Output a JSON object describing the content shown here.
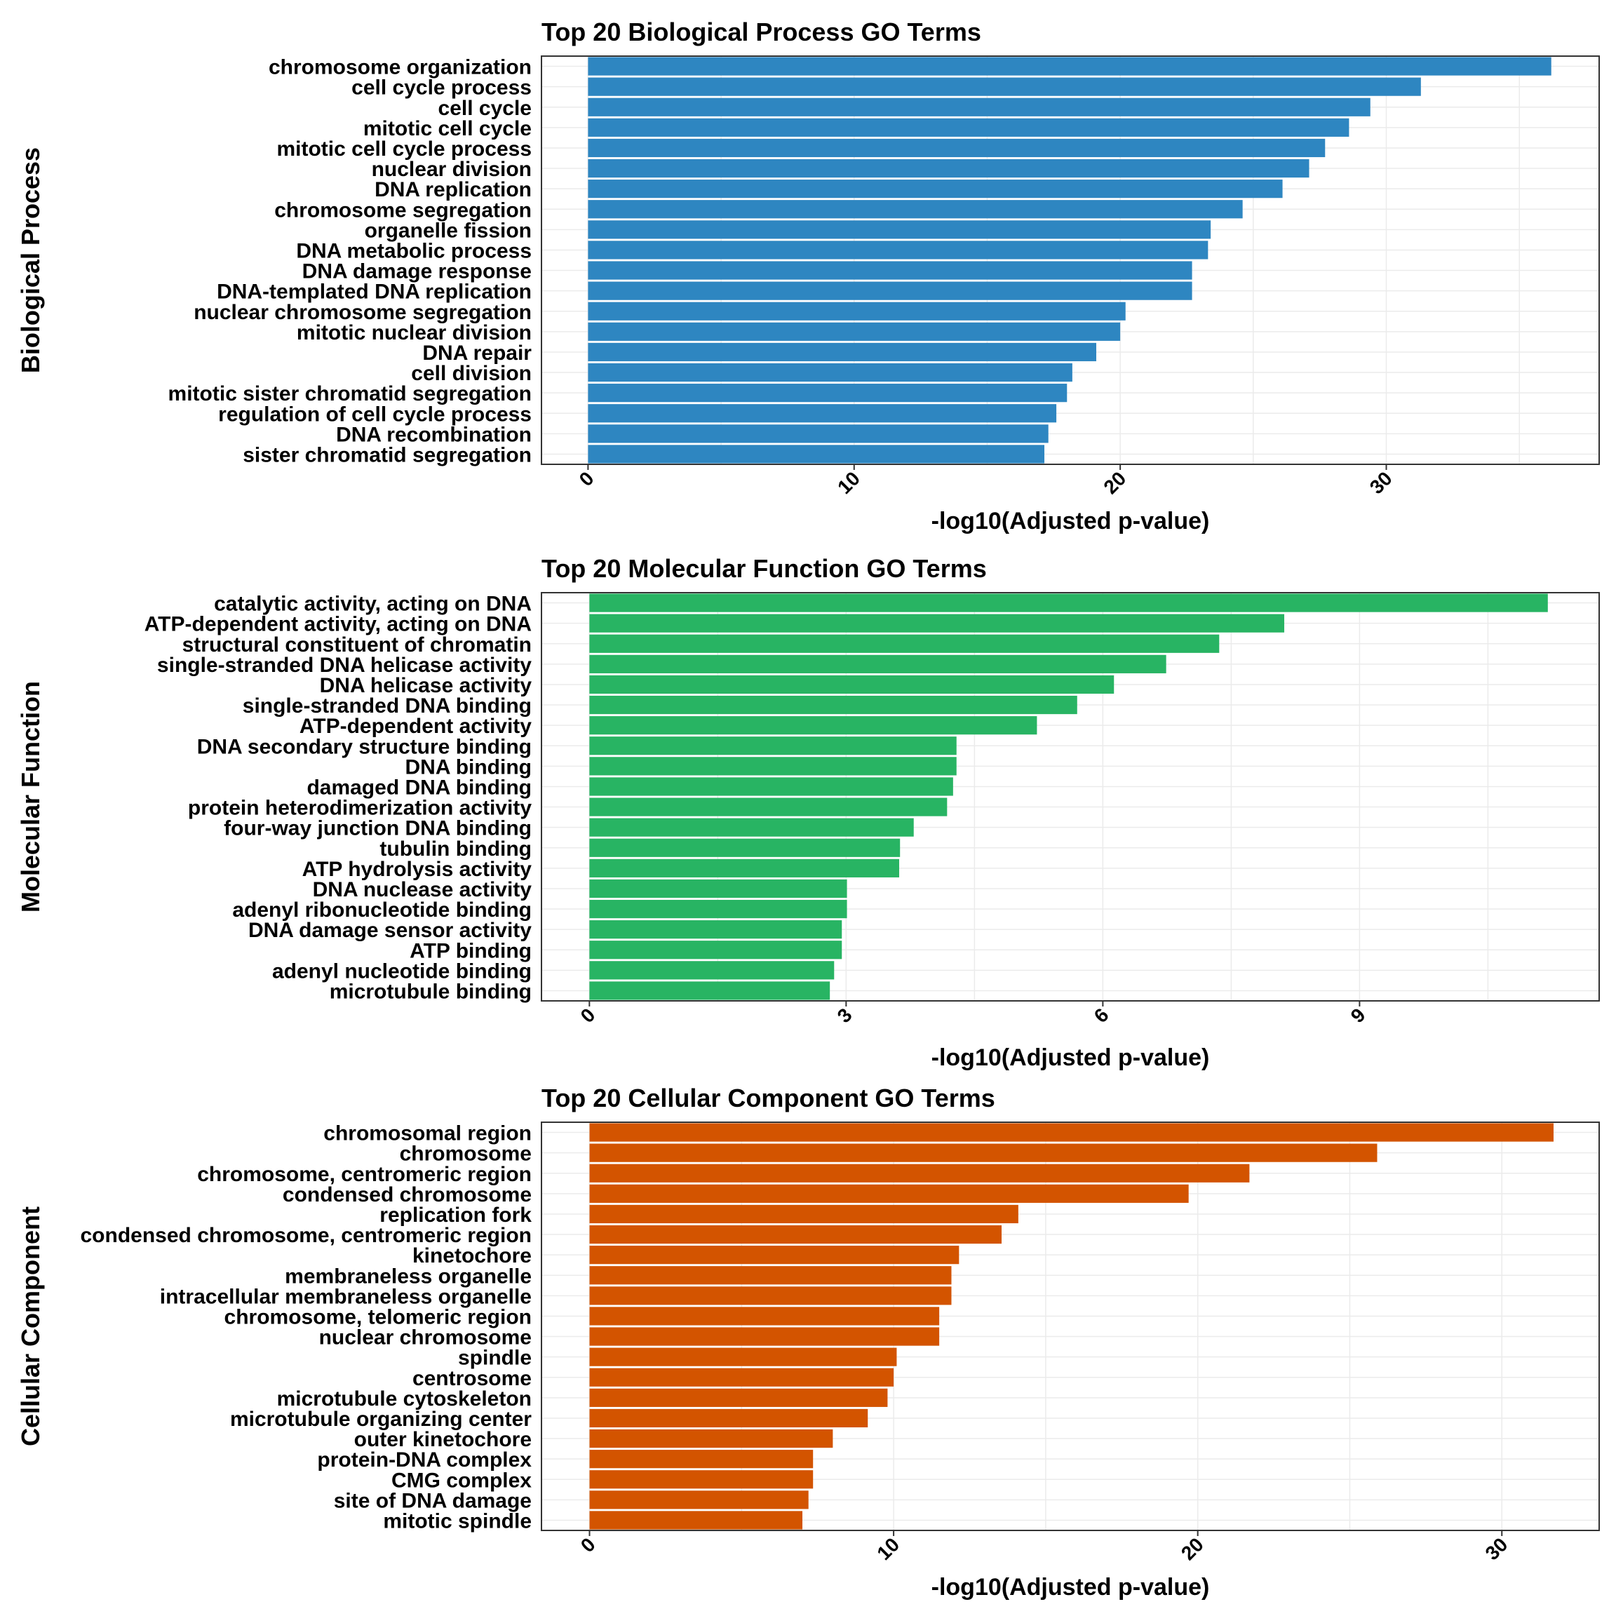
{
  "chart_data": [
    {
      "type": "bar",
      "orientation": "horizontal",
      "title": "Top 20 Biological Process GO Terms",
      "ylabel": "Biological Process",
      "xlabel": "-log10(Adjusted p-value)",
      "color": "#2E86C1",
      "xlim": [
        -1.75,
        38
      ],
      "xticks": [
        0,
        10,
        20,
        30
      ],
      "grid": true,
      "categories": [
        "chromosome organization",
        "cell cycle process",
        "cell cycle",
        "mitotic cell cycle",
        "mitotic cell cycle process",
        "nuclear division",
        "DNA replication",
        "chromosome segregation",
        "organelle fission",
        "DNA metabolic process",
        "DNA damage response",
        "DNA-templated DNA replication",
        "nuclear chromosome segregation",
        "mitotic nuclear division",
        "DNA repair",
        "cell division",
        "mitotic sister chromatid segregation",
        "regulation of cell cycle process",
        "DNA recombination",
        "sister chromatid segregation"
      ],
      "values": [
        36.2,
        31.3,
        29.4,
        28.6,
        27.7,
        27.1,
        26.1,
        24.6,
        23.4,
        23.3,
        22.7,
        22.7,
        20.2,
        20.0,
        19.1,
        18.2,
        18.0,
        17.6,
        17.3,
        17.15
      ]
    },
    {
      "type": "bar",
      "orientation": "horizontal",
      "title": "Top 20 Molecular Function GO Terms",
      "ylabel": "Molecular Function",
      "xlabel": "-log10(Adjusted p-value)",
      "color": "#28B463",
      "xlim": [
        -0.56,
        11.8
      ],
      "xticks": [
        0,
        3,
        6,
        9
      ],
      "grid": true,
      "categories": [
        "catalytic activity, acting on DNA",
        "ATP-dependent activity, acting on DNA",
        "structural constituent of chromatin",
        "single-stranded DNA helicase activity",
        "DNA helicase activity",
        "single-stranded DNA binding",
        "ATP-dependent activity",
        "DNA secondary structure binding",
        "DNA binding",
        "damaged DNA binding",
        "protein heterodimerization activity",
        "four-way junction DNA binding",
        "tubulin binding",
        "ATP hydrolysis activity",
        "DNA nuclease activity",
        "adenyl ribonucleotide binding",
        "DNA damage sensor activity",
        "ATP binding",
        "adenyl nucleotide binding",
        "microtubule binding"
      ],
      "values": [
        11.2,
        8.12,
        7.36,
        6.74,
        6.13,
        5.7,
        5.23,
        4.29,
        4.29,
        4.25,
        4.18,
        3.79,
        3.63,
        3.62,
        3.01,
        3.01,
        2.95,
        2.95,
        2.86,
        2.81
      ]
    },
    {
      "type": "bar",
      "orientation": "horizontal",
      "title": "Top 20 Cellular Component GO Terms",
      "ylabel": "Cellular Component",
      "xlabel": "-log10(Adjusted p-value)",
      "color": "#D35400",
      "xlim": [
        -1.58,
        33.2
      ],
      "xticks": [
        0,
        10,
        20,
        30
      ],
      "grid": true,
      "categories": [
        "chromosomal region",
        "chromosome",
        "chromosome, centromeric region",
        "condensed chromosome",
        "replication fork",
        "condensed chromosome, centromeric region",
        "kinetochore",
        "membraneless organelle",
        "intracellular membraneless organelle",
        "chromosome, telomeric region",
        "nuclear chromosome",
        "spindle",
        "centrosome",
        "microtubule cytoskeleton",
        "microtubule organizing center",
        "outer kinetochore",
        "protein-DNA complex",
        "CMG complex",
        "site of DNA damage",
        "mitotic spindle"
      ],
      "values": [
        31.7,
        25.9,
        21.7,
        19.7,
        14.1,
        13.55,
        12.15,
        11.9,
        11.9,
        11.5,
        11.5,
        10.1,
        10.0,
        9.8,
        9.15,
        8.0,
        7.35,
        7.35,
        7.2,
        7.0
      ]
    }
  ]
}
